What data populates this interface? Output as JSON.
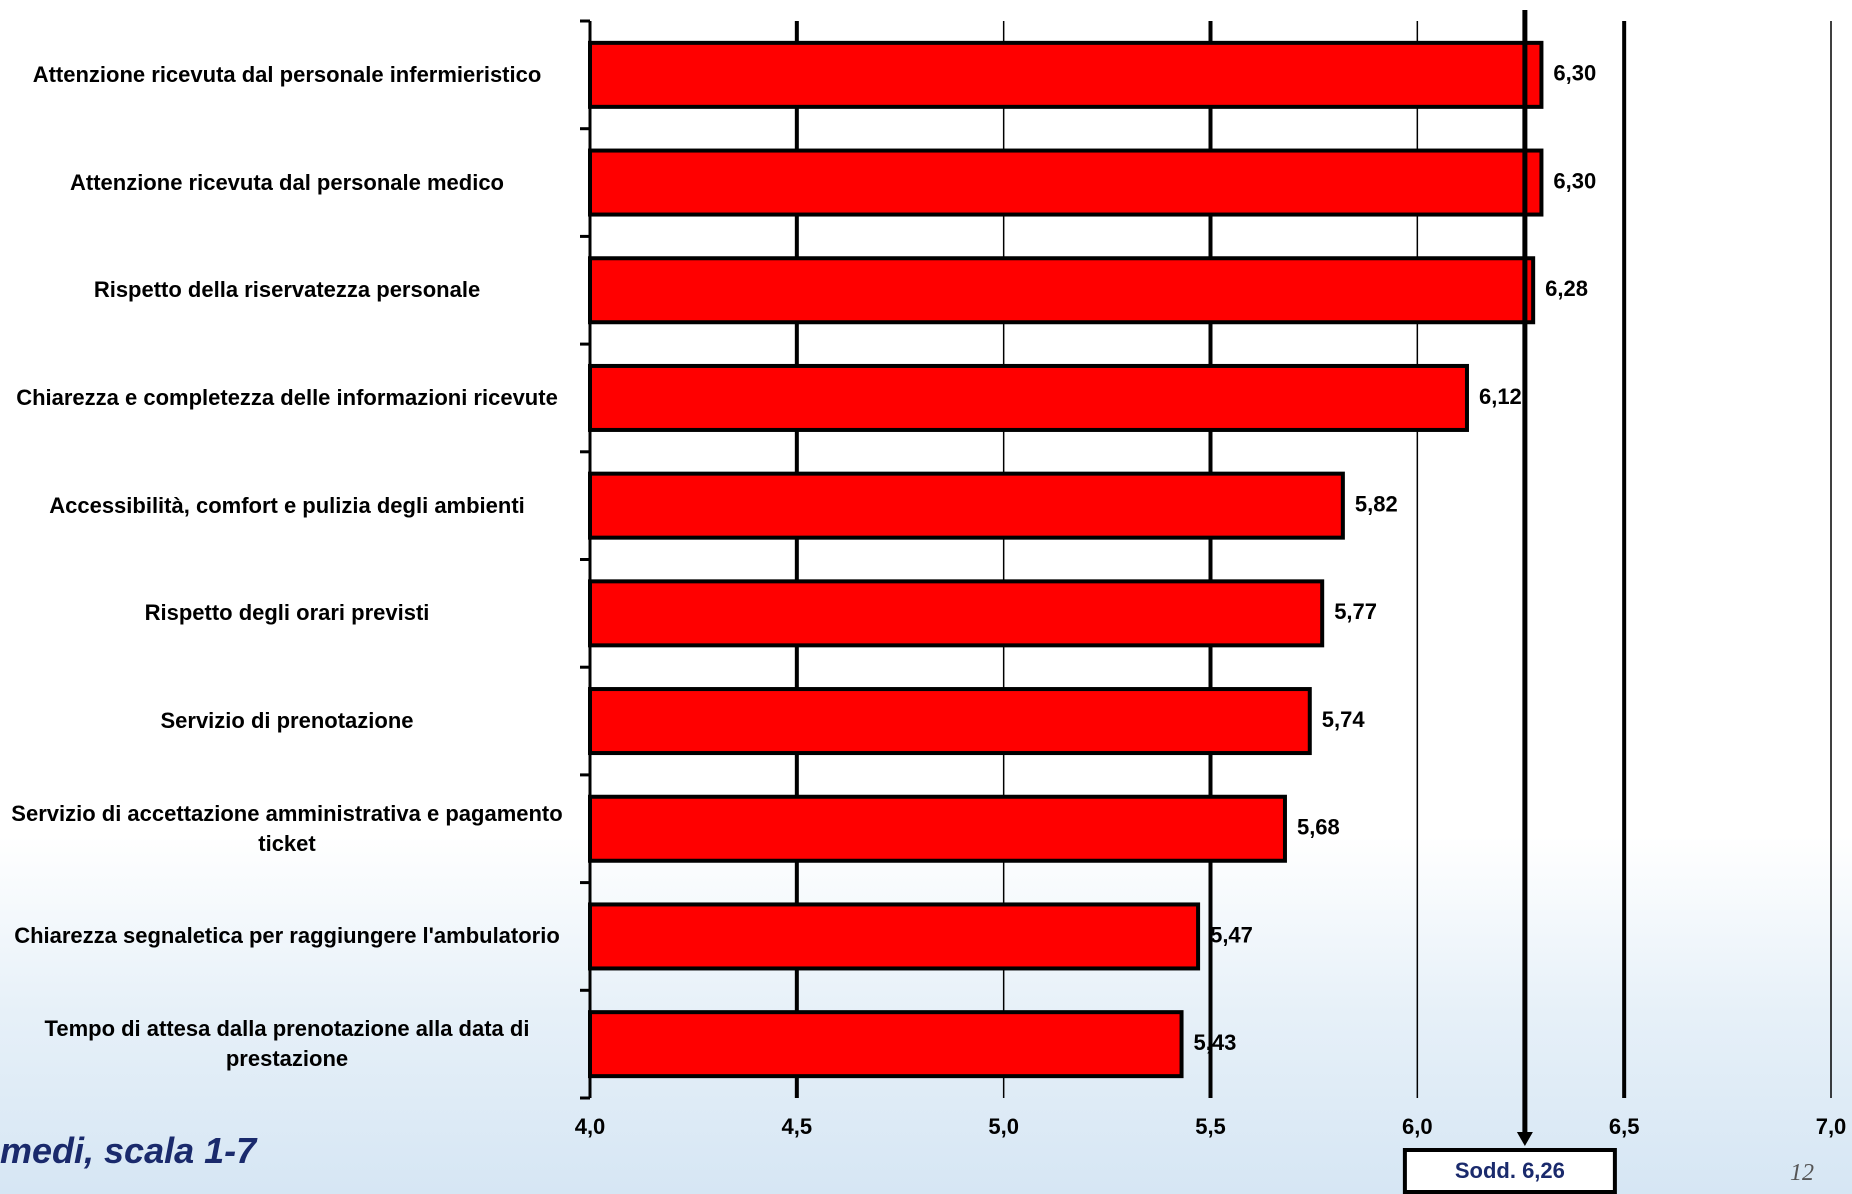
{
  "chart_data": {
    "type": "hbar",
    "categories": [
      "Attenzione ricevuta dal personale infermieristico",
      "Attenzione ricevuta dal personale medico",
      "Rispetto della riservatezza personale",
      "Chiarezza e completezza delle informazioni ricevute",
      "Accessibilità, comfort e pulizia degli ambienti",
      "Rispetto degli orari previsti",
      "Servizio di prenotazione",
      "Servizio di accettazione amministrativa e pagamento ticket",
      "Chiarezza segnaletica per raggiungere l'ambulatorio",
      "Tempo di attesa dalla prenotazione alla data di prestazione"
    ],
    "values": [
      6.3,
      6.3,
      6.28,
      6.12,
      5.82,
      5.77,
      5.74,
      5.68,
      5.47,
      5.43
    ],
    "value_labels": [
      "6,30",
      "6,30",
      "6,28",
      "6,12",
      "5,82",
      "5,77",
      "5,74",
      "5,68",
      "5,47",
      "5,43"
    ],
    "color": "#ff0000",
    "xlim": [
      4.0,
      7.0
    ],
    "xticks": [
      {
        "value": 4.0,
        "label": "4,0"
      },
      {
        "value": 4.5,
        "label": "4,5"
      },
      {
        "value": 5.0,
        "label": "5,0"
      },
      {
        "value": 5.5,
        "label": "5,5"
      },
      {
        "value": 6.0,
        "label": "6,0"
      },
      {
        "value": 6.5,
        "label": "6,5"
      },
      {
        "value": 7.0,
        "label": "7,0"
      }
    ],
    "grid": true,
    "reference": {
      "value": 6.26,
      "label": "Sodd. 6,26"
    },
    "footnote": "medi, scala 1-7",
    "page_number": "12"
  }
}
